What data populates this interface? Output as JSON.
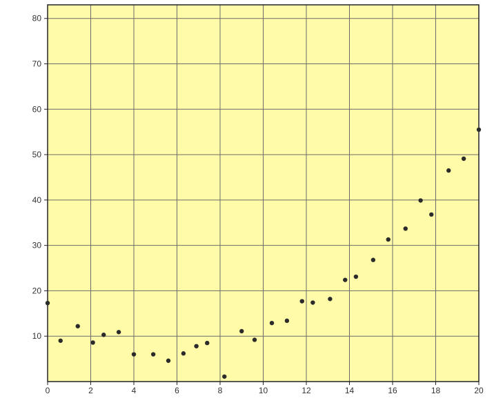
{
  "colors": {
    "plot_background": "#fffba8",
    "grid": "#6b6b6b",
    "frame": "#222222",
    "point": "#2b2b2b",
    "tick_text": "#333333"
  },
  "chart_data": {
    "type": "scatter",
    "xlim": [
      0,
      20
    ],
    "ylim": [
      0,
      83
    ],
    "grid": true,
    "x_ticks": [
      0,
      2,
      4,
      6,
      8,
      10,
      12,
      14,
      16,
      18,
      20
    ],
    "y_ticks": [
      10,
      20,
      30,
      40,
      50,
      60,
      70,
      80
    ],
    "x_tick_labels": [
      "0",
      "2",
      "4",
      "6",
      "8",
      "10",
      "12",
      "14",
      "16",
      "18",
      "20"
    ],
    "y_tick_labels": [
      "10",
      "20",
      "30",
      "40",
      "50",
      "60",
      "70",
      "80"
    ],
    "points": [
      {
        "x": 0.0,
        "y": 17.3
      },
      {
        "x": 0.6,
        "y": 9.0
      },
      {
        "x": 1.4,
        "y": 12.2
      },
      {
        "x": 2.1,
        "y": 8.6
      },
      {
        "x": 2.6,
        "y": 10.3
      },
      {
        "x": 3.3,
        "y": 10.9
      },
      {
        "x": 4.0,
        "y": 6.0
      },
      {
        "x": 4.9,
        "y": 6.0
      },
      {
        "x": 5.6,
        "y": 4.6
      },
      {
        "x": 6.3,
        "y": 6.2
      },
      {
        "x": 6.9,
        "y": 7.8
      },
      {
        "x": 7.4,
        "y": 8.5
      },
      {
        "x": 8.2,
        "y": 1.1
      },
      {
        "x": 9.0,
        "y": 11.1
      },
      {
        "x": 9.6,
        "y": 9.2
      },
      {
        "x": 10.4,
        "y": 12.9
      },
      {
        "x": 11.1,
        "y": 13.4
      },
      {
        "x": 11.8,
        "y": 17.7
      },
      {
        "x": 12.3,
        "y": 17.4
      },
      {
        "x": 13.1,
        "y": 18.2
      },
      {
        "x": 13.8,
        "y": 22.4
      },
      {
        "x": 14.3,
        "y": 23.1
      },
      {
        "x": 15.1,
        "y": 26.8
      },
      {
        "x": 15.8,
        "y": 31.3
      },
      {
        "x": 16.6,
        "y": 33.7
      },
      {
        "x": 17.3,
        "y": 39.9
      },
      {
        "x": 17.8,
        "y": 36.8
      },
      {
        "x": 18.6,
        "y": 46.5
      },
      {
        "x": 19.3,
        "y": 49.1
      },
      {
        "x": 20.0,
        "y": 55.5
      }
    ]
  }
}
